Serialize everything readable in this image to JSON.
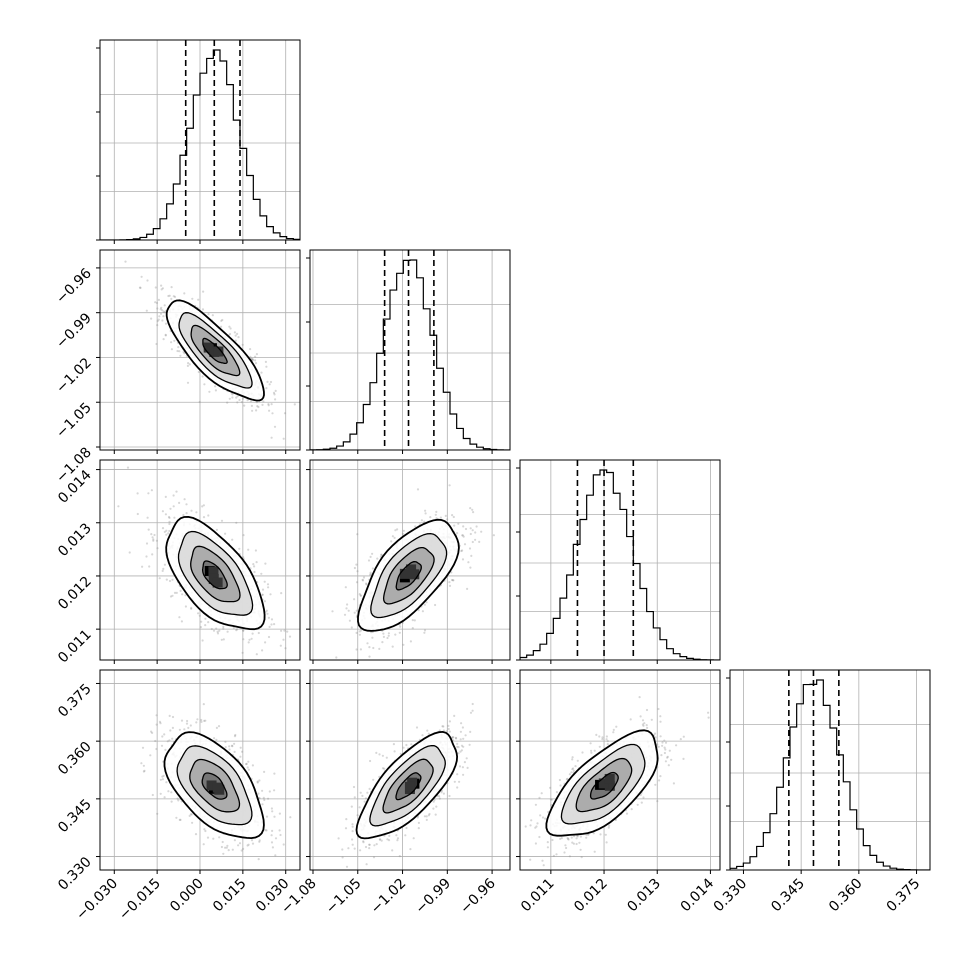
{
  "chart_data": {
    "type": "corner",
    "n_params": 4,
    "grid": true,
    "show_quantiles": [
      0.16,
      0.5,
      0.84
    ],
    "colors": {
      "hist": "#000000",
      "scatter": "#8c8c8c",
      "grid": "#b0b0b0",
      "density_max": "#000000"
    },
    "params": [
      {
        "range": [
          -0.035,
          0.035
        ],
        "ticks": [
          -0.03,
          -0.015,
          0.0,
          0.015,
          0.03
        ],
        "tick_labels": [
          "−0.030",
          "−0.015",
          "0.000",
          "0.015",
          "0.030"
        ],
        "mean": 0.005,
        "sd": 0.0085,
        "quantiles": [
          -0.005,
          0.005,
          0.014
        ],
        "hist_max": 1.0
      },
      {
        "range": [
          -1.082,
          -0.948
        ],
        "ticks": [
          -1.08,
          -1.05,
          -1.02,
          -0.99,
          -0.96
        ],
        "tick_labels": [
          "−1.08",
          "−1.05",
          "−1.02",
          "−0.99",
          "−0.96"
        ],
        "mean": -1.016,
        "sd": 0.0165,
        "quantiles": [
          -1.032,
          -1.016,
          -0.999
        ],
        "hist_max": 1.0
      },
      {
        "range": [
          0.01042,
          0.01418
        ],
        "ticks": [
          0.011,
          0.012,
          0.013,
          0.014
        ],
        "tick_labels": [
          "0.011",
          "0.012",
          "0.013",
          "0.014"
        ],
        "mean": 0.01201,
        "sd": 0.00052,
        "quantiles": [
          0.0115,
          0.012,
          0.01255
        ],
        "hist_max": 1.0
      },
      {
        "range": [
          0.3265,
          0.3785
        ],
        "ticks": [
          0.33,
          0.345,
          0.36,
          0.375
        ],
        "tick_labels": [
          "0.330",
          "0.345",
          "0.360",
          "0.375"
        ],
        "mean": 0.3483,
        "sd": 0.0068,
        "quantiles": [
          0.3418,
          0.3482,
          0.3548
        ],
        "hist_max": 1.0
      }
    ],
    "correlations": [
      [
        1.0,
        -0.8,
        -0.6,
        -0.55
      ],
      [
        -0.8,
        1.0,
        0.65,
        0.72
      ],
      [
        -0.6,
        0.65,
        1.0,
        0.68
      ],
      [
        -0.55,
        0.72,
        0.68,
        1.0
      ]
    ],
    "contour_levels_sigma": [
      0.5,
      1.0,
      1.5,
      2.0
    ]
  }
}
